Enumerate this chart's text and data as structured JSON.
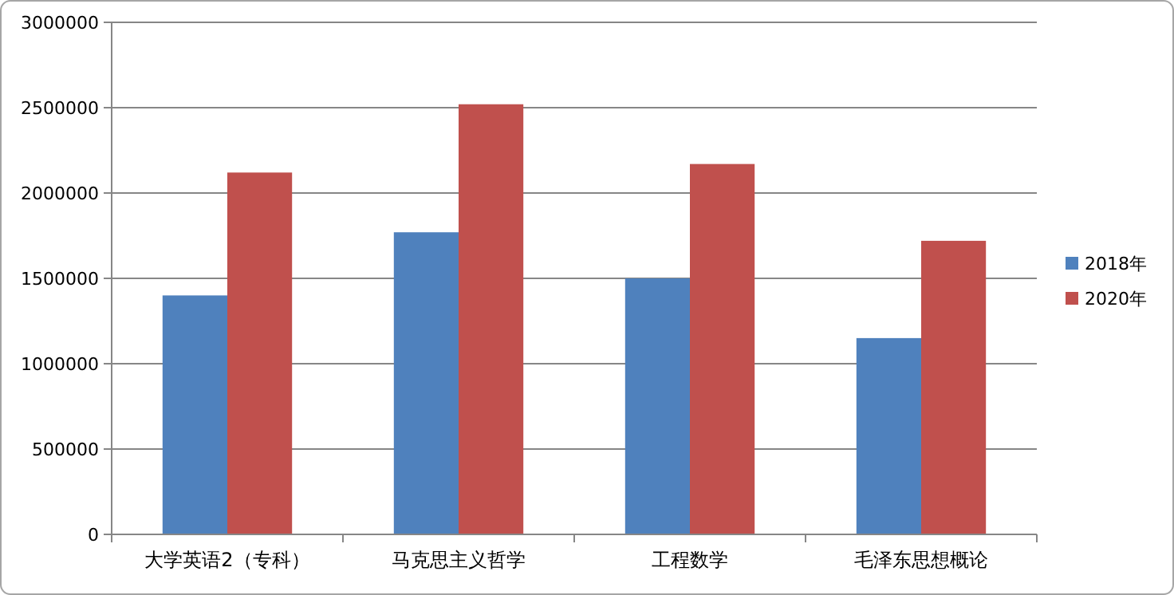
{
  "chart_data": {
    "type": "bar",
    "categories": [
      "大学英语2（专科）",
      "马克思主义哲学",
      "工程数学",
      "毛泽东思想概论"
    ],
    "series": [
      {
        "name": "2018年",
        "color": "#4f81bd",
        "values": [
          1400000,
          1770000,
          1500000,
          1150000
        ]
      },
      {
        "name": "2020年",
        "color": "#c0504d",
        "values": [
          2120000,
          2520000,
          2170000,
          1720000
        ]
      }
    ],
    "ylim": [
      0,
      3000000
    ],
    "yticks": [
      0,
      500000,
      1000000,
      1500000,
      2000000,
      2500000,
      3000000
    ],
    "grid": "y",
    "legend": "right"
  }
}
